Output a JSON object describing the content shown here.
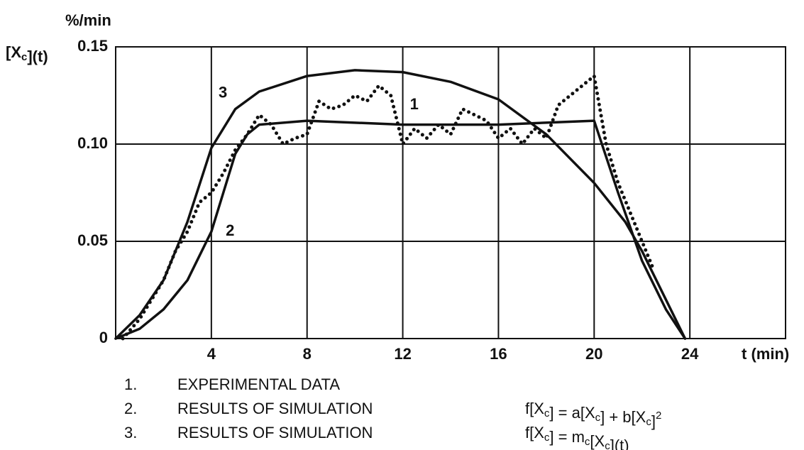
{
  "chart_data": {
    "type": "line",
    "y_label_top": "%/min",
    "y_label": [
      {
        "t": "[X"
      },
      {
        "sub": "c"
      },
      {
        "t": "](t)"
      }
    ],
    "x_label": "t (min)",
    "xlim": [
      0,
      28
    ],
    "xticks": [
      4,
      8,
      12,
      16,
      20,
      24
    ],
    "ylim": [
      0,
      0.15
    ],
    "yticks": [
      0,
      0.05,
      {
        "value": 0.1,
        "label": "0.10"
      },
      0.15
    ],
    "grid": true,
    "series": [
      {
        "name": "EXPERIMENTAL DATA",
        "number": "1.",
        "curve_label": "1",
        "style": "dotted",
        "color": "#111111",
        "x": [
          0.3,
          1,
          2,
          2.5,
          3,
          3.5,
          4,
          4.5,
          5,
          5.5,
          6,
          6.5,
          7,
          7.5,
          8,
          8.5,
          9,
          9.5,
          10,
          10.5,
          11,
          11.5,
          12,
          12.5,
          13,
          13.5,
          14,
          14.5,
          15,
          15.5,
          16,
          16.5,
          17,
          17.5,
          18,
          18.5,
          19,
          19.5,
          20,
          20.5,
          21,
          21.5,
          22,
          22.5
        ],
        "values": [
          0,
          0.01,
          0.03,
          0.045,
          0.055,
          0.07,
          0.075,
          0.085,
          0.097,
          0.105,
          0.115,
          0.11,
          0.1,
          0.103,
          0.105,
          0.122,
          0.118,
          0.12,
          0.125,
          0.122,
          0.13,
          0.125,
          0.1,
          0.108,
          0.103,
          0.11,
          0.105,
          0.118,
          0.115,
          0.112,
          0.103,
          0.108,
          0.1,
          0.108,
          0.103,
          0.12,
          0.125,
          0.13,
          0.135,
          0.1,
          0.08,
          0.065,
          0.05,
          0.035
        ]
      },
      {
        "name": "RESULTS OF SIMULATION",
        "number": "2.",
        "curve_label": "2",
        "style": "solid",
        "color": "#111111",
        "formula": [
          {
            "t": "f[X"
          },
          {
            "sub": "c"
          },
          {
            "t": "] = a[X"
          },
          {
            "sub": "c"
          },
          {
            "t": "] + b[X"
          },
          {
            "sub": "c"
          },
          {
            "t": "]"
          },
          {
            "sup": "2"
          }
        ],
        "x": [
          0,
          1,
          2,
          3,
          4,
          4.5,
          5,
          5.5,
          6,
          8,
          12,
          16,
          20,
          21,
          22,
          23,
          23.8
        ],
        "values": [
          0,
          0.005,
          0.015,
          0.03,
          0.055,
          0.075,
          0.095,
          0.105,
          0.11,
          0.112,
          0.11,
          0.11,
          0.112,
          0.075,
          0.04,
          0.015,
          0
        ]
      },
      {
        "name": "RESULTS OF SIMULATION",
        "number": "3.",
        "curve_label": "3",
        "style": "solid",
        "color": "#111111",
        "formula": [
          {
            "t": "f[X"
          },
          {
            "sub": "c"
          },
          {
            "t": "] = m"
          },
          {
            "sub": "c"
          },
          {
            "t": "[X"
          },
          {
            "sub": "c"
          },
          {
            "t": "](t)"
          }
        ],
        "x": [
          0,
          1,
          2,
          3,
          4,
          5,
          6,
          8,
          10,
          12,
          14,
          16,
          18,
          20,
          21.3,
          22,
          23,
          23.8
        ],
        "values": [
          0,
          0.012,
          0.03,
          0.06,
          0.098,
          0.118,
          0.127,
          0.135,
          0.138,
          0.137,
          0.132,
          0.123,
          0.105,
          0.08,
          0.06,
          0.045,
          0.02,
          0
        ]
      }
    ]
  }
}
